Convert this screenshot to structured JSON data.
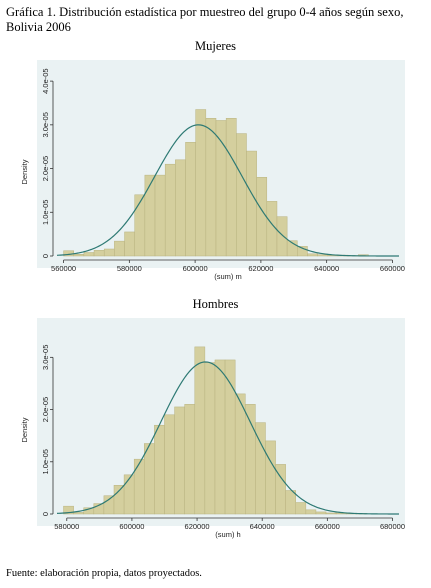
{
  "figure": {
    "title": "Gráfica 1. Distribución estadística por muestreo del grupo 0-4 años según sexo, Bolivia 2006",
    "source": "Fuente: elaboración propia, datos proyectados."
  },
  "colors": {
    "panel_bg": "#EAF2F3",
    "bar_fill": "#D4CF9E",
    "bar_edge": "#B8B27F",
    "curve": "#2E7A74"
  },
  "chart_data": [
    {
      "type": "histogram",
      "title": "Mujeres",
      "xlabel": "(sum) m",
      "ylabel": "Density",
      "xlim": [
        558000,
        662000
      ],
      "ylim": [
        0,
        4.3e-05
      ],
      "xticks": [
        560000,
        580000,
        600000,
        620000,
        640000,
        660000
      ],
      "xtick_labels": [
        "560000",
        "580000",
        "600000",
        "620000",
        "640000",
        "660000"
      ],
      "yticks": [
        0,
        1e-05,
        2e-05,
        3e-05,
        4e-05
      ],
      "ytick_labels": [
        "0",
        "1.0e-05",
        "2.0e-05",
        "3.0e-05",
        "4.0e-05"
      ],
      "bin_width": 3090,
      "bin_starts": [
        560000,
        563090,
        566180,
        569270,
        572360,
        575450,
        578540,
        581630,
        584720,
        587810,
        590900,
        593990,
        597080,
        600170,
        603260,
        606350,
        609440,
        612530,
        615620,
        618710,
        621800,
        624890,
        627980,
        631070,
        634160,
        637250,
        640340,
        643430,
        646520,
        649610
      ],
      "values": [
        1.2e-06,
        4e-07,
        8e-07,
        1.3e-06,
        1.6e-06,
        3.4e-06,
        5.5e-06,
        1.4e-05,
        1.85e-05,
        1.85e-05,
        2.1e-05,
        2.2e-05,
        2.6e-05,
        3.35e-05,
        3.15e-05,
        3.1e-05,
        3.15e-05,
        2.8e-05,
        2.4e-05,
        1.8e-05,
        1.25e-05,
        9e-06,
        3.5e-06,
        2.2e-06,
        5e-07,
        3e-07,
        2e-07,
        2e-07,
        1e-07,
        3e-07
      ],
      "normal_curve": {
        "mean": 601000,
        "sd": 13300
      }
    },
    {
      "type": "histogram",
      "title": "Hombres",
      "xlabel": "(sum) h",
      "ylabel": "Density",
      "xlim": [
        577000,
        682000
      ],
      "ylim": [
        0,
        3.6e-05
      ],
      "xticks": [
        580000,
        600000,
        620000,
        640000,
        660000,
        680000
      ],
      "xtick_labels": [
        "580000",
        "600000",
        "620000",
        "640000",
        "660000",
        "680000"
      ],
      "yticks": [
        0,
        1e-05,
        2e-05,
        3e-05
      ],
      "ytick_labels": [
        "0",
        "1.0e-05",
        "2.0e-05",
        "3.0e-05"
      ],
      "bin_width": 3100,
      "bin_starts": [
        579000,
        582100,
        585200,
        588300,
        591400,
        594500,
        597600,
        600700,
        603800,
        606900,
        610000,
        613100,
        616200,
        619300,
        622400,
        625500,
        628600,
        631700,
        634800,
        637900,
        641000,
        644100,
        647200,
        650300,
        653400,
        656500,
        659600,
        662700,
        665800,
        668900
      ],
      "values": [
        1.5e-06,
        3e-07,
        1.2e-06,
        2e-06,
        3.5e-06,
        5.5e-06,
        7.5e-06,
        1.05e-05,
        1.35e-05,
        1.7e-05,
        1.9e-05,
        2.05e-05,
        2.1e-05,
        3.2e-05,
        2.9e-05,
        2.95e-05,
        2.95e-05,
        2.3e-05,
        2.1e-05,
        1.75e-05,
        1.4e-05,
        9.5e-06,
        4.5e-06,
        2.2e-06,
        8e-07,
        4e-07,
        2e-07,
        2e-07,
        1e-07,
        1e-07
      ],
      "normal_curve": {
        "mean": 622600,
        "sd": 13700
      }
    }
  ]
}
